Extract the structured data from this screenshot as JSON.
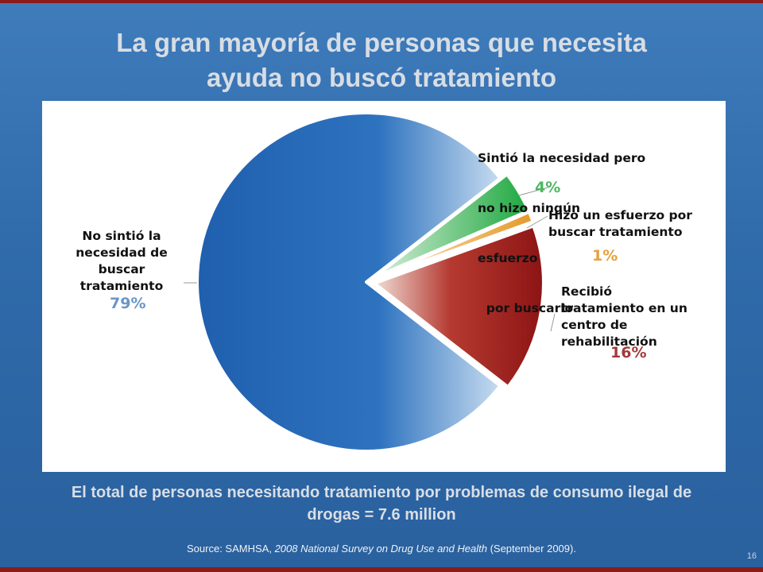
{
  "slide": {
    "title_line1": "La gran mayoría de personas que necesita",
    "title_line2": "ayuda no buscó tratamiento",
    "total_line1": "El total de personas necesitando tratamiento por problemas de consumo ilegal de",
    "total_line2": "drogas = 7.6 million",
    "source_prefix": "Source: SAMHSA, ",
    "source_italic": "2008 National Survey on Drug Use and Health",
    "source_suffix": " (September 2009).",
    "page_number": "16"
  },
  "chart_data": {
    "type": "pie",
    "title": "",
    "slices": [
      {
        "name": "No sintió la necesidad de buscar tratamiento",
        "label_lines": [
          "No sintió la",
          "necesidad de",
          "buscar",
          "tratamiento"
        ],
        "value": 79,
        "value_label": "79%",
        "color": "#2a6cb8"
      },
      {
        "name": "Recibió tratamiento en un centro de rehabilitación",
        "label_lines": [
          "Recibió",
          "tratamiento en un",
          "centro de",
          "rehabilitación"
        ],
        "value": 16,
        "value_label": "16%",
        "color": "#9b1b1b"
      },
      {
        "name": "Hizo un esfuerzo por buscar tratamiento",
        "label_lines": [
          "Hizo un esfuerzo por",
          "buscar tratamiento"
        ],
        "value": 1,
        "value_label": "1%",
        "color": "#e8a13a"
      },
      {
        "name": "Sintió la necesidad pero no hizo ningún esfuerzo por buscarlo",
        "label_lines": [
          "Sintió la necesidad pero",
          "no hizo ningún",
          "esfuerzo",
          "  por buscarlo"
        ],
        "value": 4,
        "value_label": "4%",
        "color": "#2eae48"
      }
    ],
    "legend": "none"
  }
}
